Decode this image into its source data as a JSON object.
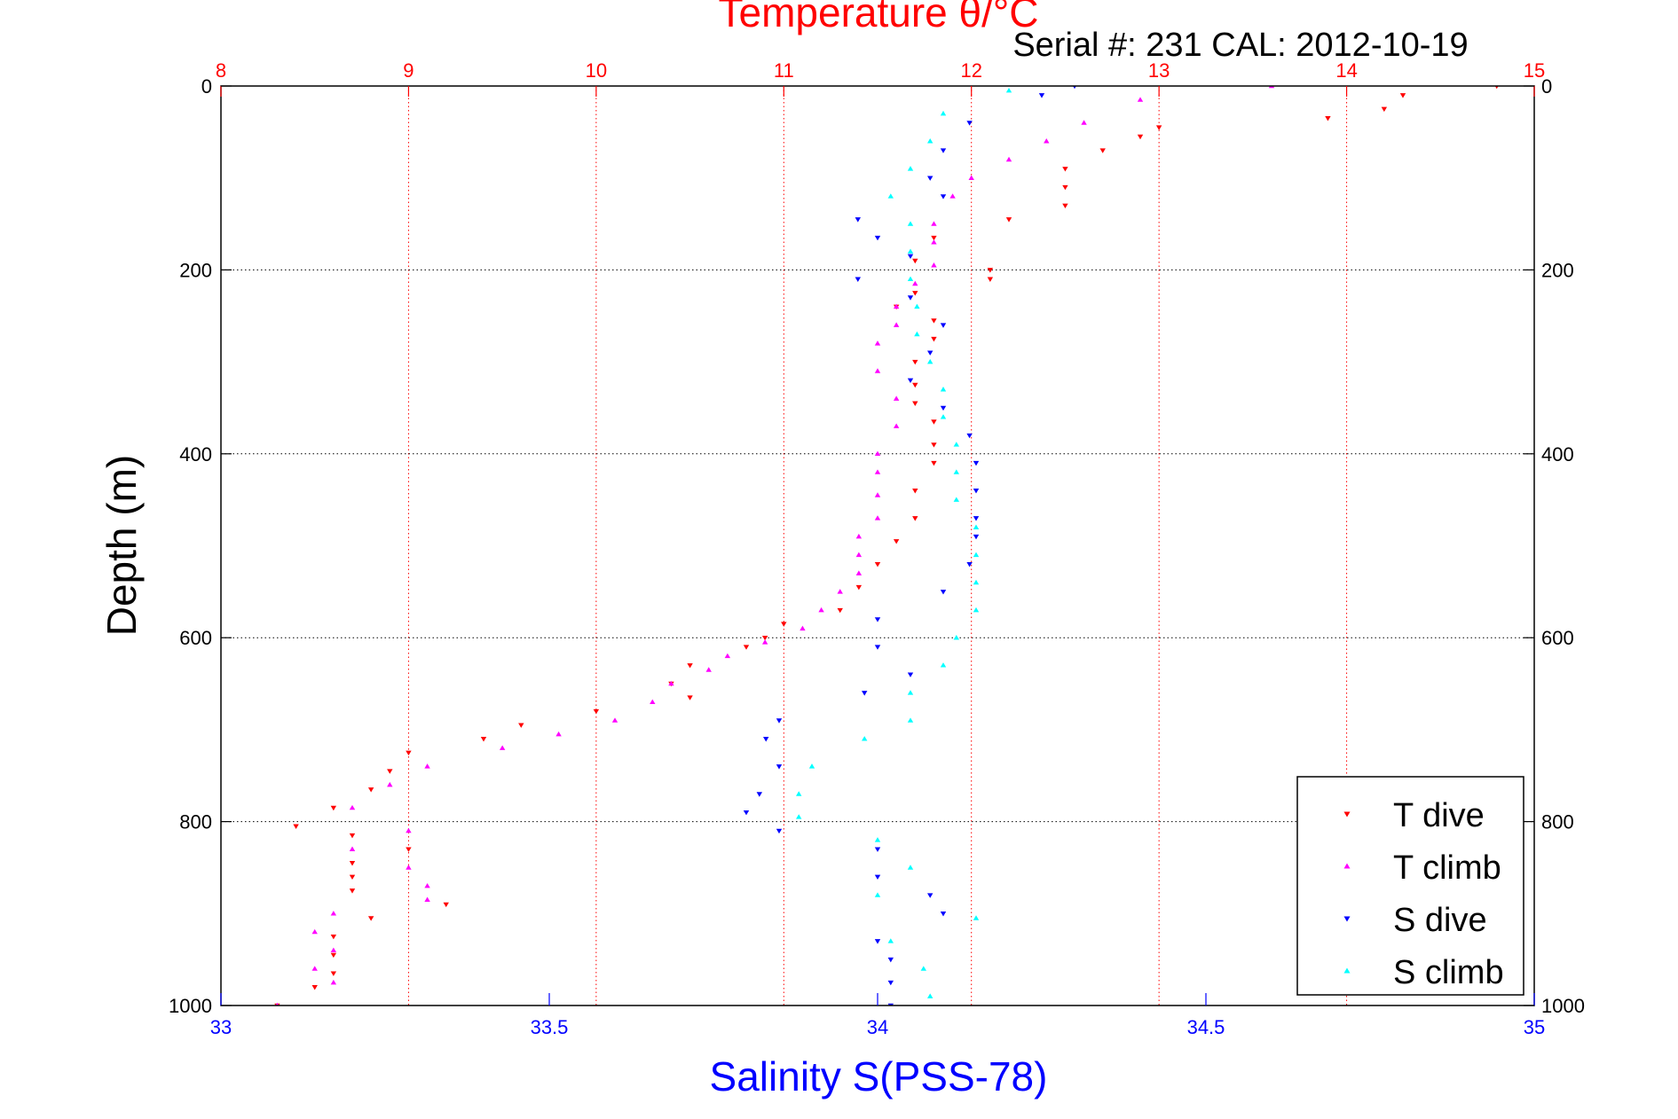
{
  "chart_data": {
    "type": "scatter",
    "title": "Temperature θ/°C",
    "subtitle": "Serial #: 231   CAL: 2012-10-19",
    "ylabel": "Depth (m)",
    "xlabel_bottom": "Salinity S(PSS-78)",
    "xlabel_top": "Temperature θ/°C",
    "y_axis": {
      "range": [
        0,
        1000
      ],
      "inverted": true,
      "ticks": [
        "0",
        "200",
        "400",
        "600",
        "800",
        "1000"
      ]
    },
    "x_bottom_axis": {
      "quantity": "Salinity",
      "range": [
        33,
        35
      ],
      "ticks": [
        "33",
        "33.5",
        "34",
        "34.5",
        "35"
      ],
      "color": "#0000ff"
    },
    "x_top_axis": {
      "quantity": "Temperature",
      "range": [
        8,
        15
      ],
      "ticks": [
        "8",
        "9",
        "10",
        "11",
        "12",
        "13",
        "14",
        "15"
      ],
      "color": "#ff0000"
    },
    "grid": true,
    "legend_position": "bottom-right",
    "series": [
      {
        "name": "T dive",
        "axis": "temperature",
        "marker": "triangle-down",
        "color": "#ff0000",
        "points": [
          [
            14.8,
            0
          ],
          [
            14.3,
            10
          ],
          [
            14.2,
            25
          ],
          [
            13.9,
            35
          ],
          [
            13.0,
            45
          ],
          [
            12.9,
            55
          ],
          [
            12.7,
            70
          ],
          [
            12.5,
            90
          ],
          [
            12.5,
            110
          ],
          [
            12.5,
            130
          ],
          [
            12.2,
            145
          ],
          [
            11.8,
            165
          ],
          [
            11.7,
            190
          ],
          [
            12.1,
            200
          ],
          [
            12.1,
            210
          ],
          [
            11.7,
            225
          ],
          [
            11.6,
            240
          ],
          [
            11.8,
            255
          ],
          [
            11.8,
            275
          ],
          [
            11.7,
            300
          ],
          [
            11.7,
            325
          ],
          [
            11.7,
            345
          ],
          [
            11.8,
            365
          ],
          [
            11.8,
            390
          ],
          [
            11.8,
            410
          ],
          [
            11.7,
            440
          ],
          [
            11.7,
            470
          ],
          [
            11.6,
            495
          ],
          [
            11.5,
            520
          ],
          [
            11.4,
            545
          ],
          [
            11.3,
            570
          ],
          [
            11.0,
            585
          ],
          [
            10.9,
            600
          ],
          [
            10.8,
            610
          ],
          [
            10.5,
            630
          ],
          [
            10.4,
            650
          ],
          [
            10.5,
            665
          ],
          [
            10.0,
            680
          ],
          [
            9.6,
            695
          ],
          [
            9.4,
            710
          ],
          [
            9.0,
            725
          ],
          [
            8.9,
            745
          ],
          [
            8.8,
            765
          ],
          [
            8.6,
            785
          ],
          [
            8.4,
            805
          ],
          [
            8.7,
            815
          ],
          [
            9.0,
            830
          ],
          [
            8.7,
            845
          ],
          [
            8.7,
            860
          ],
          [
            8.7,
            875
          ],
          [
            9.2,
            890
          ],
          [
            8.8,
            905
          ],
          [
            8.6,
            925
          ],
          [
            8.6,
            945
          ],
          [
            8.6,
            965
          ],
          [
            8.5,
            980
          ],
          [
            8.3,
            1000
          ]
        ]
      },
      {
        "name": "T climb",
        "axis": "temperature",
        "marker": "triangle-up",
        "color": "#ff00ff",
        "points": [
          [
            13.6,
            0
          ],
          [
            12.9,
            15
          ],
          [
            12.6,
            40
          ],
          [
            12.4,
            60
          ],
          [
            12.2,
            80
          ],
          [
            12.0,
            100
          ],
          [
            11.9,
            120
          ],
          [
            11.8,
            150
          ],
          [
            11.8,
            170
          ],
          [
            11.8,
            195
          ],
          [
            11.7,
            215
          ],
          [
            11.6,
            240
          ],
          [
            11.6,
            260
          ],
          [
            11.5,
            280
          ],
          [
            11.5,
            310
          ],
          [
            11.6,
            340
          ],
          [
            11.6,
            370
          ],
          [
            11.5,
            400
          ],
          [
            11.5,
            420
          ],
          [
            11.5,
            445
          ],
          [
            11.5,
            470
          ],
          [
            11.4,
            490
          ],
          [
            11.4,
            510
          ],
          [
            11.4,
            530
          ],
          [
            11.3,
            550
          ],
          [
            11.2,
            570
          ],
          [
            11.1,
            590
          ],
          [
            10.9,
            605
          ],
          [
            10.7,
            620
          ],
          [
            10.6,
            635
          ],
          [
            10.4,
            650
          ],
          [
            10.3,
            670
          ],
          [
            10.1,
            690
          ],
          [
            9.8,
            705
          ],
          [
            9.5,
            720
          ],
          [
            9.1,
            740
          ],
          [
            8.9,
            760
          ],
          [
            8.7,
            785
          ],
          [
            9.0,
            810
          ],
          [
            8.7,
            830
          ],
          [
            9.0,
            850
          ],
          [
            9.1,
            870
          ],
          [
            9.1,
            885
          ],
          [
            8.6,
            900
          ],
          [
            8.5,
            920
          ],
          [
            8.6,
            940
          ],
          [
            8.5,
            960
          ],
          [
            8.6,
            975
          ],
          [
            8.3,
            1000
          ]
        ]
      },
      {
        "name": "S dive",
        "axis": "salinity",
        "marker": "triangle-down",
        "color": "#0000ff",
        "points": [
          [
            34.3,
            0
          ],
          [
            34.25,
            10
          ],
          [
            34.14,
            40
          ],
          [
            34.1,
            70
          ],
          [
            34.08,
            100
          ],
          [
            34.1,
            120
          ],
          [
            33.97,
            145
          ],
          [
            34.0,
            165
          ],
          [
            34.05,
            185
          ],
          [
            33.97,
            210
          ],
          [
            34.05,
            230
          ],
          [
            34.1,
            260
          ],
          [
            34.08,
            290
          ],
          [
            34.05,
            320
          ],
          [
            34.1,
            350
          ],
          [
            34.14,
            380
          ],
          [
            34.15,
            410
          ],
          [
            34.15,
            440
          ],
          [
            34.15,
            470
          ],
          [
            34.15,
            490
          ],
          [
            34.14,
            520
          ],
          [
            34.1,
            550
          ],
          [
            34.0,
            580
          ],
          [
            34.0,
            610
          ],
          [
            34.05,
            640
          ],
          [
            33.98,
            660
          ],
          [
            33.85,
            690
          ],
          [
            33.83,
            710
          ],
          [
            33.85,
            740
          ],
          [
            33.82,
            770
          ],
          [
            33.8,
            790
          ],
          [
            33.85,
            810
          ],
          [
            34.0,
            830
          ],
          [
            34.0,
            860
          ],
          [
            34.08,
            880
          ],
          [
            34.1,
            900
          ],
          [
            34.0,
            930
          ],
          [
            34.02,
            950
          ],
          [
            34.02,
            975
          ],
          [
            34.02,
            1000
          ]
        ]
      },
      {
        "name": "S climb",
        "axis": "salinity",
        "marker": "triangle-up",
        "color": "#00ffff",
        "points": [
          [
            34.2,
            5
          ],
          [
            34.1,
            30
          ],
          [
            34.08,
            60
          ],
          [
            34.05,
            90
          ],
          [
            34.02,
            120
          ],
          [
            34.05,
            150
          ],
          [
            34.05,
            180
          ],
          [
            34.05,
            210
          ],
          [
            34.06,
            240
          ],
          [
            34.06,
            270
          ],
          [
            34.08,
            300
          ],
          [
            34.1,
            330
          ],
          [
            34.1,
            360
          ],
          [
            34.12,
            390
          ],
          [
            34.12,
            420
          ],
          [
            34.12,
            450
          ],
          [
            34.15,
            480
          ],
          [
            34.15,
            510
          ],
          [
            34.15,
            540
          ],
          [
            34.15,
            570
          ],
          [
            34.12,
            600
          ],
          [
            34.1,
            630
          ],
          [
            34.05,
            660
          ],
          [
            34.05,
            690
          ],
          [
            33.98,
            710
          ],
          [
            33.9,
            740
          ],
          [
            33.88,
            770
          ],
          [
            33.88,
            795
          ],
          [
            34.0,
            820
          ],
          [
            34.05,
            850
          ],
          [
            34.0,
            880
          ],
          [
            34.15,
            905
          ],
          [
            34.02,
            930
          ],
          [
            34.07,
            960
          ],
          [
            34.08,
            990
          ]
        ]
      }
    ]
  }
}
